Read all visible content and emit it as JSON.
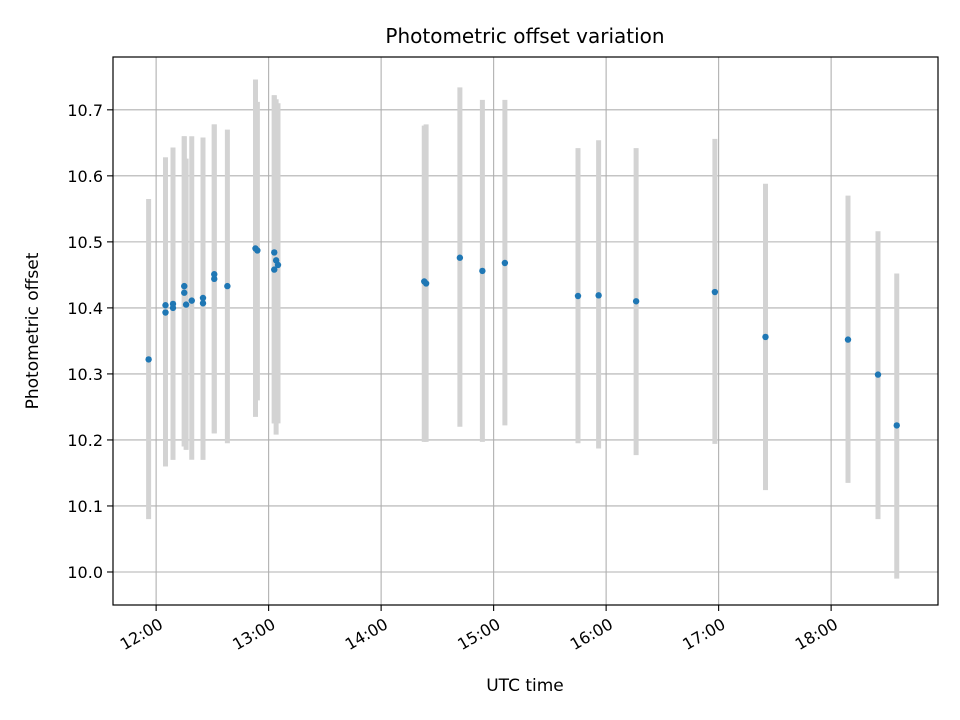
{
  "chart_data": {
    "type": "scatter",
    "title": "Photometric offset variation",
    "xlabel": "UTC time",
    "ylabel": "Photometric offset",
    "x_is_time": true,
    "xlim": [
      "11:37",
      "18:57"
    ],
    "ylim": [
      9.95,
      10.78
    ],
    "x_ticks": [
      "12:00",
      "13:00",
      "14:00",
      "15:00",
      "16:00",
      "17:00",
      "18:00"
    ],
    "y_ticks": [
      10.0,
      10.1,
      10.2,
      10.3,
      10.4,
      10.5,
      10.6,
      10.7
    ],
    "y_tick_labels": [
      "10.0",
      "10.1",
      "10.2",
      "10.3",
      "10.4",
      "10.5",
      "10.6",
      "10.7"
    ],
    "grid": true,
    "marker_color": "#1f77b4",
    "errorbar_color": "#d3d3d3",
    "series": [
      {
        "points": [
          {
            "x": "11:56",
            "y": 10.322,
            "ylow": 10.08,
            "yhigh": 10.565
          },
          {
            "x": "12:05",
            "y": 10.404,
            "ylow": 10.16,
            "yhigh": 10.628
          },
          {
            "x": "12:05",
            "y": 10.393,
            "ylow": 10.16,
            "yhigh": 10.628
          },
          {
            "x": "12:09",
            "y": 10.406,
            "ylow": 10.17,
            "yhigh": 10.643
          },
          {
            "x": "12:09",
            "y": 10.4,
            "ylow": 10.17,
            "yhigh": 10.643
          },
          {
            "x": "12:15",
            "y": 10.433,
            "ylow": 10.19,
            "yhigh": 10.66
          },
          {
            "x": "12:15",
            "y": 10.423,
            "ylow": 10.19,
            "yhigh": 10.66
          },
          {
            "x": "12:16",
            "y": 10.405,
            "ylow": 10.185,
            "yhigh": 10.626
          },
          {
            "x": "12:19",
            "y": 10.411,
            "ylow": 10.17,
            "yhigh": 10.66
          },
          {
            "x": "12:25",
            "y": 10.415,
            "ylow": 10.17,
            "yhigh": 10.658
          },
          {
            "x": "12:25",
            "y": 10.407,
            "ylow": 10.17,
            "yhigh": 10.658
          },
          {
            "x": "12:31",
            "y": 10.451,
            "ylow": 10.21,
            "yhigh": 10.678
          },
          {
            "x": "12:31",
            "y": 10.444,
            "ylow": 10.21,
            "yhigh": 10.678
          },
          {
            "x": "12:38",
            "y": 10.433,
            "ylow": 10.195,
            "yhigh": 10.67
          },
          {
            "x": "12:53",
            "y": 10.49,
            "ylow": 10.235,
            "yhigh": 10.746
          },
          {
            "x": "12:54",
            "y": 10.487,
            "ylow": 10.26,
            "yhigh": 10.712
          },
          {
            "x": "13:03",
            "y": 10.484,
            "ylow": 10.225,
            "yhigh": 10.722
          },
          {
            "x": "13:03",
            "y": 10.458,
            "ylow": 10.225,
            "yhigh": 10.722
          },
          {
            "x": "13:04",
            "y": 10.472,
            "ylow": 10.208,
            "yhigh": 10.716
          },
          {
            "x": "13:05",
            "y": 10.465,
            "ylow": 10.225,
            "yhigh": 10.71
          },
          {
            "x": "14:23",
            "y": 10.44,
            "ylow": 10.197,
            "yhigh": 10.676
          },
          {
            "x": "14:24",
            "y": 10.437,
            "ylow": 10.197,
            "yhigh": 10.678
          },
          {
            "x": "14:42",
            "y": 10.476,
            "ylow": 10.22,
            "yhigh": 10.734
          },
          {
            "x": "14:54",
            "y": 10.456,
            "ylow": 10.197,
            "yhigh": 10.715
          },
          {
            "x": "15:06",
            "y": 10.468,
            "ylow": 10.222,
            "yhigh": 10.715
          },
          {
            "x": "15:45",
            "y": 10.418,
            "ylow": 10.195,
            "yhigh": 10.642
          },
          {
            "x": "15:56",
            "y": 10.419,
            "ylow": 10.187,
            "yhigh": 10.654
          },
          {
            "x": "16:16",
            "y": 10.41,
            "ylow": 10.177,
            "yhigh": 10.642
          },
          {
            "x": "16:58",
            "y": 10.424,
            "ylow": 10.194,
            "yhigh": 10.656
          },
          {
            "x": "17:25",
            "y": 10.356,
            "ylow": 10.124,
            "yhigh": 10.588
          },
          {
            "x": "18:09",
            "y": 10.352,
            "ylow": 10.135,
            "yhigh": 10.57
          },
          {
            "x": "18:25",
            "y": 10.299,
            "ylow": 10.08,
            "yhigh": 10.516
          },
          {
            "x": "18:35",
            "y": 10.222,
            "ylow": 9.99,
            "yhigh": 10.452
          }
        ]
      }
    ]
  }
}
